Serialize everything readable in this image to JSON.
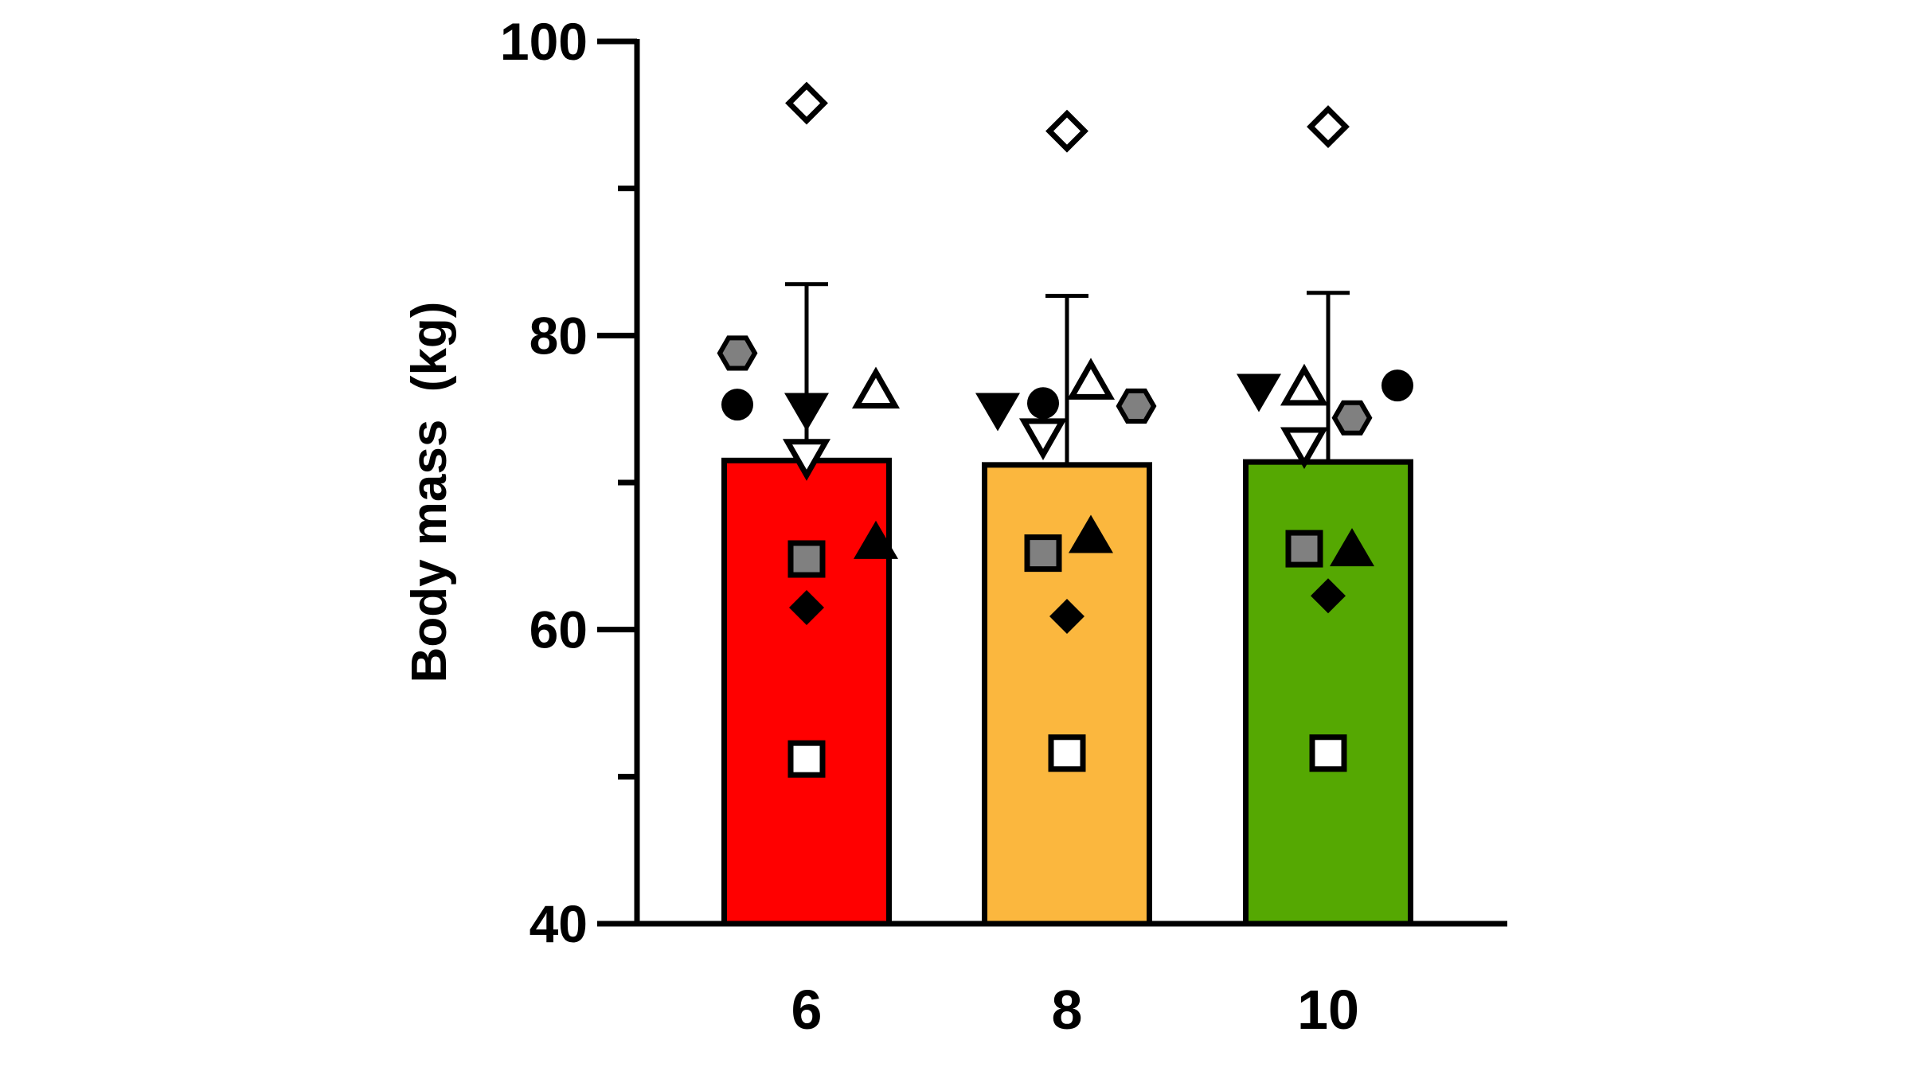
{
  "chart_data": {
    "type": "bar",
    "title": "",
    "xlabel": "",
    "ylabel": "Body mass  (kg)",
    "ylim": [
      40,
      100
    ],
    "yticks": [
      40,
      60,
      80,
      100
    ],
    "yminor": [
      50,
      70,
      90
    ],
    "categories": [
      "6",
      "8",
      "10"
    ],
    "values": [
      71.5,
      71.2,
      71.4
    ],
    "error_upper": [
      83.5,
      82.7,
      82.9
    ],
    "colors": [
      "#ff0000",
      "#fbb73e",
      "#55a802"
    ],
    "grid": false,
    "points": [
      [
        {
          "marker": "diamond-open",
          "value": 95.8
        },
        {
          "marker": "hexagon-gray",
          "value": 78.8
        },
        {
          "marker": "circle-filled",
          "value": 75.3
        },
        {
          "marker": "triangle-down-filled",
          "value": 74.9
        },
        {
          "marker": "triangle-up-open",
          "value": 76.2
        },
        {
          "marker": "triangle-down-open",
          "value": 71.8
        },
        {
          "marker": "triangle-up-filled",
          "value": 66.0
        },
        {
          "marker": "square-gray",
          "value": 64.8
        },
        {
          "marker": "diamond-filled",
          "value": 61.5
        },
        {
          "marker": "square-open",
          "value": 51.2
        }
      ],
      [
        {
          "marker": "diamond-open",
          "value": 93.9
        },
        {
          "marker": "triangle-down-filled",
          "value": 74.9
        },
        {
          "marker": "circle-filled",
          "value": 75.4
        },
        {
          "marker": "triangle-up-open",
          "value": 76.8
        },
        {
          "marker": "hexagon-gray",
          "value": 75.2
        },
        {
          "marker": "triangle-down-open",
          "value": 73.2
        },
        {
          "marker": "triangle-up-filled",
          "value": 66.4
        },
        {
          "marker": "square-gray",
          "value": 65.2
        },
        {
          "marker": "diamond-filled",
          "value": 60.9
        },
        {
          "marker": "square-open",
          "value": 51.6
        }
      ],
      [
        {
          "marker": "diamond-open",
          "value": 94.2
        },
        {
          "marker": "triangle-down-filled",
          "value": 76.2
        },
        {
          "marker": "triangle-up-open",
          "value": 76.4
        },
        {
          "marker": "circle-filled",
          "value": 76.6
        },
        {
          "marker": "hexagon-gray",
          "value": 74.4
        },
        {
          "marker": "triangle-down-open",
          "value": 72.6
        },
        {
          "marker": "triangle-up-filled",
          "value": 65.5
        },
        {
          "marker": "square-gray",
          "value": 65.5
        },
        {
          "marker": "diamond-filled",
          "value": 62.3
        },
        {
          "marker": "square-open",
          "value": 51.6
        }
      ]
    ]
  }
}
